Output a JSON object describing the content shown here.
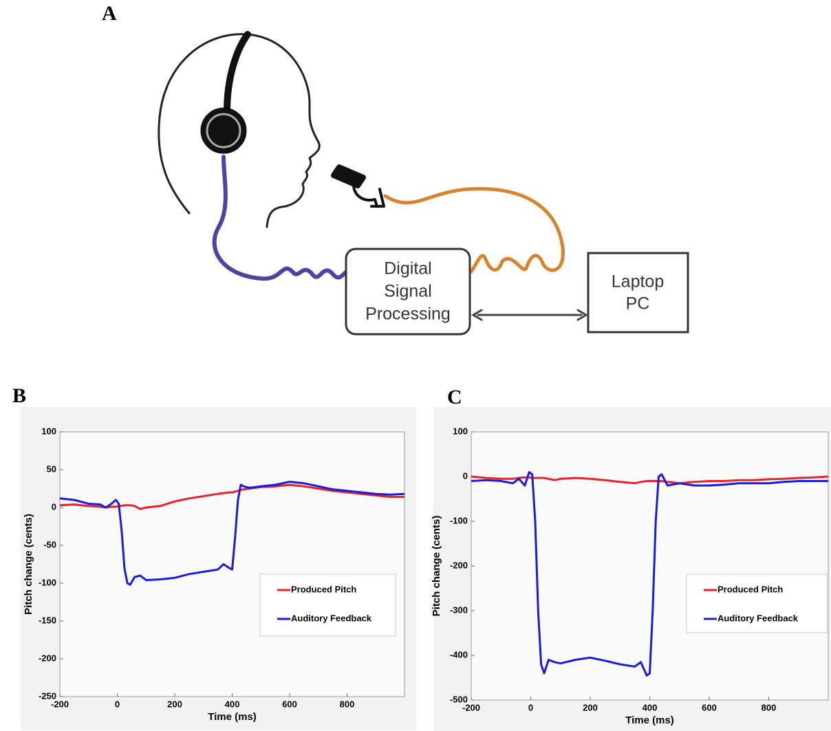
{
  "panels": [
    "A",
    "B",
    "C"
  ],
  "diagram": {
    "dsp": [
      "Digital",
      "Signal",
      "Processing"
    ],
    "laptop": [
      "Laptop",
      "PC"
    ]
  },
  "chart_data": [
    {
      "type": "line",
      "xlabel": "Time (ms)",
      "ylabel": "Pitch change (cents)",
      "x": [
        -200,
        -150,
        -100,
        -60,
        -40,
        -20,
        -5,
        5,
        15,
        25,
        35,
        45,
        60,
        80,
        100,
        150,
        200,
        250,
        300,
        350,
        370,
        390,
        400,
        410,
        420,
        430,
        440,
        460,
        500,
        550,
        600,
        650,
        700,
        750,
        800,
        850,
        900,
        950,
        1000
      ],
      "series": [
        {
          "name": "Produced Pitch",
          "color": "#e8222a",
          "values": [
            3,
            4,
            2,
            1,
            0,
            1,
            1,
            2,
            2,
            3,
            3,
            3,
            2,
            -2,
            0,
            2,
            8,
            12,
            15,
            18,
            19,
            20,
            20,
            21,
            22,
            23,
            24,
            25,
            27,
            28,
            30,
            28,
            25,
            22,
            20,
            18,
            16,
            14,
            14
          ]
        },
        {
          "name": "Auditory Feedback",
          "color": "#1a1ae0",
          "values": [
            12,
            10,
            5,
            4,
            0,
            5,
            10,
            5,
            -30,
            -80,
            -100,
            -102,
            -92,
            -90,
            -96,
            -95,
            -93,
            -88,
            -85,
            -82,
            -75,
            -80,
            -82,
            -40,
            10,
            30,
            28,
            26,
            28,
            30,
            34,
            32,
            28,
            24,
            22,
            20,
            18,
            17,
            18
          ]
        }
      ],
      "xlim": [
        -200,
        1000
      ],
      "xticks": [
        -200,
        0,
        200,
        400,
        600,
        800
      ],
      "ylim": [
        -250,
        100
      ],
      "yticks": [
        -250,
        -200,
        -150,
        -100,
        -50,
        0,
        50,
        100
      ],
      "legend": "lower right"
    },
    {
      "type": "line",
      "xlabel": "Time (ms)",
      "ylabel": "Pitch change (cents)",
      "x": [
        -200,
        -150,
        -100,
        -60,
        -40,
        -20,
        -5,
        5,
        15,
        25,
        35,
        45,
        60,
        80,
        100,
        150,
        200,
        250,
        300,
        350,
        370,
        390,
        400,
        410,
        420,
        430,
        440,
        460,
        500,
        550,
        600,
        650,
        700,
        750,
        800,
        850,
        900,
        950,
        1000
      ],
      "series": [
        {
          "name": "Produced Pitch",
          "color": "#e8222a",
          "values": [
            0,
            -3,
            -5,
            -5,
            -3,
            -2,
            -2,
            -3,
            -3,
            -3,
            -3,
            -3,
            -5,
            -8,
            -5,
            -3,
            -5,
            -8,
            -12,
            -15,
            -12,
            -10,
            -10,
            -10,
            -10,
            -10,
            -10,
            -12,
            -15,
            -12,
            -10,
            -10,
            -8,
            -8,
            -6,
            -5,
            -3,
            -2,
            0
          ]
        },
        {
          "name": "Auditory Feedback",
          "color": "#1a1ae0",
          "values": [
            -10,
            -8,
            -10,
            -15,
            -5,
            -20,
            10,
            5,
            -100,
            -300,
            -420,
            -440,
            -410,
            -415,
            -418,
            -410,
            -405,
            -412,
            -420,
            -425,
            -415,
            -445,
            -440,
            -300,
            -100,
            0,
            5,
            -20,
            -15,
            -20,
            -20,
            -18,
            -15,
            -15,
            -15,
            -12,
            -10,
            -10,
            -10
          ]
        }
      ],
      "xlim": [
        -200,
        1000
      ],
      "xticks": [
        -200,
        0,
        200,
        400,
        600,
        800
      ],
      "ylim": [
        -500,
        100
      ],
      "yticks": [
        -500,
        -400,
        -300,
        -200,
        -100,
        0,
        100
      ],
      "legend": "lower right"
    }
  ]
}
